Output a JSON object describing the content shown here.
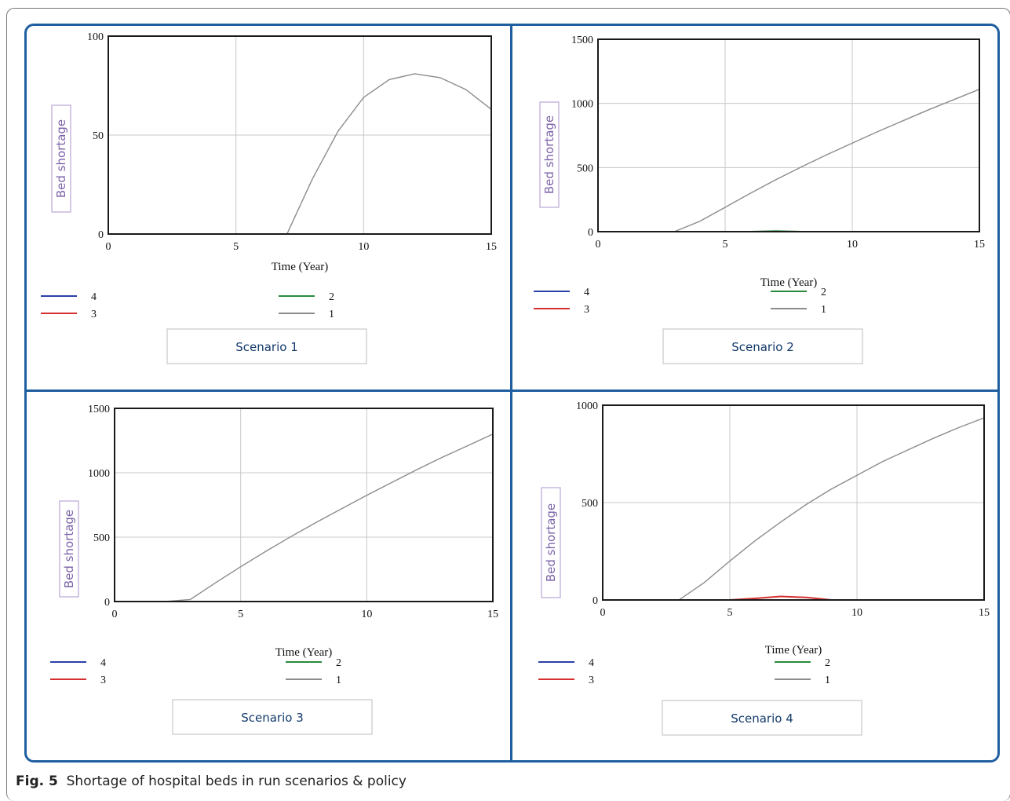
{
  "caption": {
    "label": "Fig. 5",
    "text": "Shortage of hospital beds in run scenarios & policy"
  },
  "colors": {
    "frame": "#1f5fa0",
    "series_4": "#2b3fa8",
    "series_3": "#d62f2f",
    "series_2": "#2a8a3c",
    "series_1": "#8c8c8c"
  },
  "chart_data": [
    {
      "type": "line",
      "title": "Scenario 1",
      "xlabel": "Time (Year)",
      "ylabel": "Bed shortage",
      "xlim": [
        0,
        15
      ],
      "ylim": [
        0,
        100
      ],
      "xticks": [
        0,
        5,
        10,
        15
      ],
      "yticks": [
        0,
        50,
        100
      ],
      "grid": true,
      "legend": [
        "4",
        "3",
        "2",
        "1"
      ],
      "series": [
        {
          "name": "1",
          "x": [
            0,
            1,
            2,
            3,
            4,
            5,
            6,
            7,
            8,
            9,
            10,
            11,
            12,
            13,
            14,
            15
          ],
          "y": [
            0,
            0,
            0,
            0,
            0,
            0,
            0,
            0,
            28,
            52,
            69,
            78,
            81,
            79,
            73,
            63
          ]
        },
        {
          "name": "2",
          "x": [
            0,
            15
          ],
          "y": [
            0,
            0
          ]
        },
        {
          "name": "3",
          "x": [
            0,
            15
          ],
          "y": [
            0,
            0
          ]
        },
        {
          "name": "4",
          "x": [
            0,
            15
          ],
          "y": [
            0,
            0
          ]
        }
      ]
    },
    {
      "type": "line",
      "title": "Scenario 2",
      "xlabel": "Time (Year)",
      "ylabel": "Bed shortage",
      "xlim": [
        0,
        15
      ],
      "ylim": [
        0,
        1500
      ],
      "xticks": [
        0,
        5,
        10,
        15
      ],
      "yticks": [
        0,
        500,
        1000,
        1500
      ],
      "grid": true,
      "legend": [
        "4",
        "3",
        "2",
        "1"
      ],
      "series": [
        {
          "name": "1",
          "x": [
            0,
            1,
            2,
            3,
            4,
            5,
            6,
            7,
            8,
            9,
            10,
            11,
            12,
            13,
            14,
            15
          ],
          "y": [
            0,
            0,
            0,
            0,
            80,
            190,
            300,
            405,
            505,
            600,
            690,
            780,
            865,
            950,
            1030,
            1110
          ]
        },
        {
          "name": "2",
          "x": [
            0,
            6,
            7,
            8,
            15
          ],
          "y": [
            0,
            0,
            5,
            0,
            0
          ]
        },
        {
          "name": "3",
          "x": [
            0,
            15
          ],
          "y": [
            0,
            0
          ]
        },
        {
          "name": "4",
          "x": [
            0,
            15
          ],
          "y": [
            0,
            0
          ]
        }
      ]
    },
    {
      "type": "line",
      "title": "Scenario 3",
      "xlabel": "Time (Year)",
      "ylabel": "Bed shortage",
      "xlim": [
        0,
        15
      ],
      "ylim": [
        0,
        1500
      ],
      "xticks": [
        0,
        5,
        10,
        15
      ],
      "yticks": [
        0,
        500,
        1000,
        1500
      ],
      "grid": true,
      "legend": [
        "4",
        "3",
        "2",
        "1"
      ],
      "series": [
        {
          "name": "1",
          "x": [
            0,
            1,
            2,
            3,
            4,
            5,
            6,
            7,
            8,
            9,
            10,
            11,
            12,
            13,
            14,
            15
          ],
          "y": [
            0,
            0,
            0,
            15,
            145,
            270,
            390,
            505,
            615,
            720,
            825,
            925,
            1025,
            1120,
            1210,
            1300
          ]
        },
        {
          "name": "2",
          "x": [
            0,
            15
          ],
          "y": [
            0,
            0
          ]
        },
        {
          "name": "3",
          "x": [
            0,
            15
          ],
          "y": [
            0,
            0
          ]
        },
        {
          "name": "4",
          "x": [
            0,
            15
          ],
          "y": [
            0,
            0
          ]
        }
      ]
    },
    {
      "type": "line",
      "title": "Scenario 4",
      "xlabel": "Time (Year)",
      "ylabel": "Bed shortage",
      "xlim": [
        0,
        15
      ],
      "ylim": [
        0,
        1000
      ],
      "xticks": [
        0,
        5,
        10,
        15
      ],
      "yticks": [
        0,
        500,
        1000
      ],
      "grid": true,
      "legend": [
        "4",
        "3",
        "2",
        "1"
      ],
      "series": [
        {
          "name": "1",
          "x": [
            0,
            1,
            2,
            3,
            4,
            5,
            6,
            7,
            8,
            9,
            10,
            11,
            12,
            13,
            14,
            15
          ],
          "y": [
            0,
            0,
            0,
            0,
            90,
            200,
            305,
            400,
            490,
            570,
            640,
            710,
            770,
            830,
            885,
            935
          ]
        },
        {
          "name": "2",
          "x": [
            0,
            15
          ],
          "y": [
            0,
            0
          ]
        },
        {
          "name": "3",
          "x": [
            0,
            5,
            6,
            7,
            8,
            9,
            15
          ],
          "y": [
            0,
            0,
            8,
            18,
            13,
            0,
            0
          ]
        },
        {
          "name": "4",
          "x": [
            0,
            15
          ],
          "y": [
            0,
            0
          ]
        }
      ]
    }
  ]
}
